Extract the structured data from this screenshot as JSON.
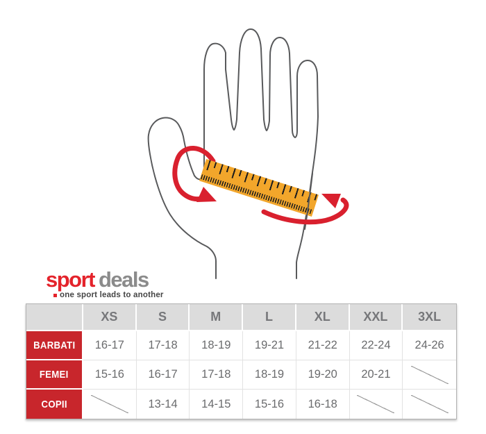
{
  "brand": {
    "name_primary": "sport",
    "name_secondary": "deals",
    "tagline": "one sport leads to another",
    "primary_color": "#e4232b",
    "secondary_color": "#8b8b8b"
  },
  "illustration": {
    "subject": "open hand with ruler measuring palm circumference",
    "ruler_color": "#f2a62b",
    "arrow_color": "#d9202e",
    "outline_color": "#58595b"
  },
  "table": {
    "corner_label": "",
    "columns": [
      "XS",
      "S",
      "M",
      "L",
      "XL",
      "XXL",
      "3XL"
    ],
    "rows": [
      {
        "label": "BARBATI",
        "values": [
          "16-17",
          "17-18",
          "18-19",
          "19-21",
          "21-22",
          "22-24",
          "24-26"
        ]
      },
      {
        "label": "FEMEI",
        "values": [
          "15-16",
          "16-17",
          "17-18",
          "18-19",
          "19-20",
          "20-21",
          null
        ]
      },
      {
        "label": "COPII",
        "values": [
          null,
          "13-14",
          "14-15",
          "15-16",
          "16-18",
          null,
          null
        ]
      }
    ],
    "header_bg": "#dcdcdc",
    "label_bg": "#c8262c",
    "not_available_marker": "slash"
  }
}
